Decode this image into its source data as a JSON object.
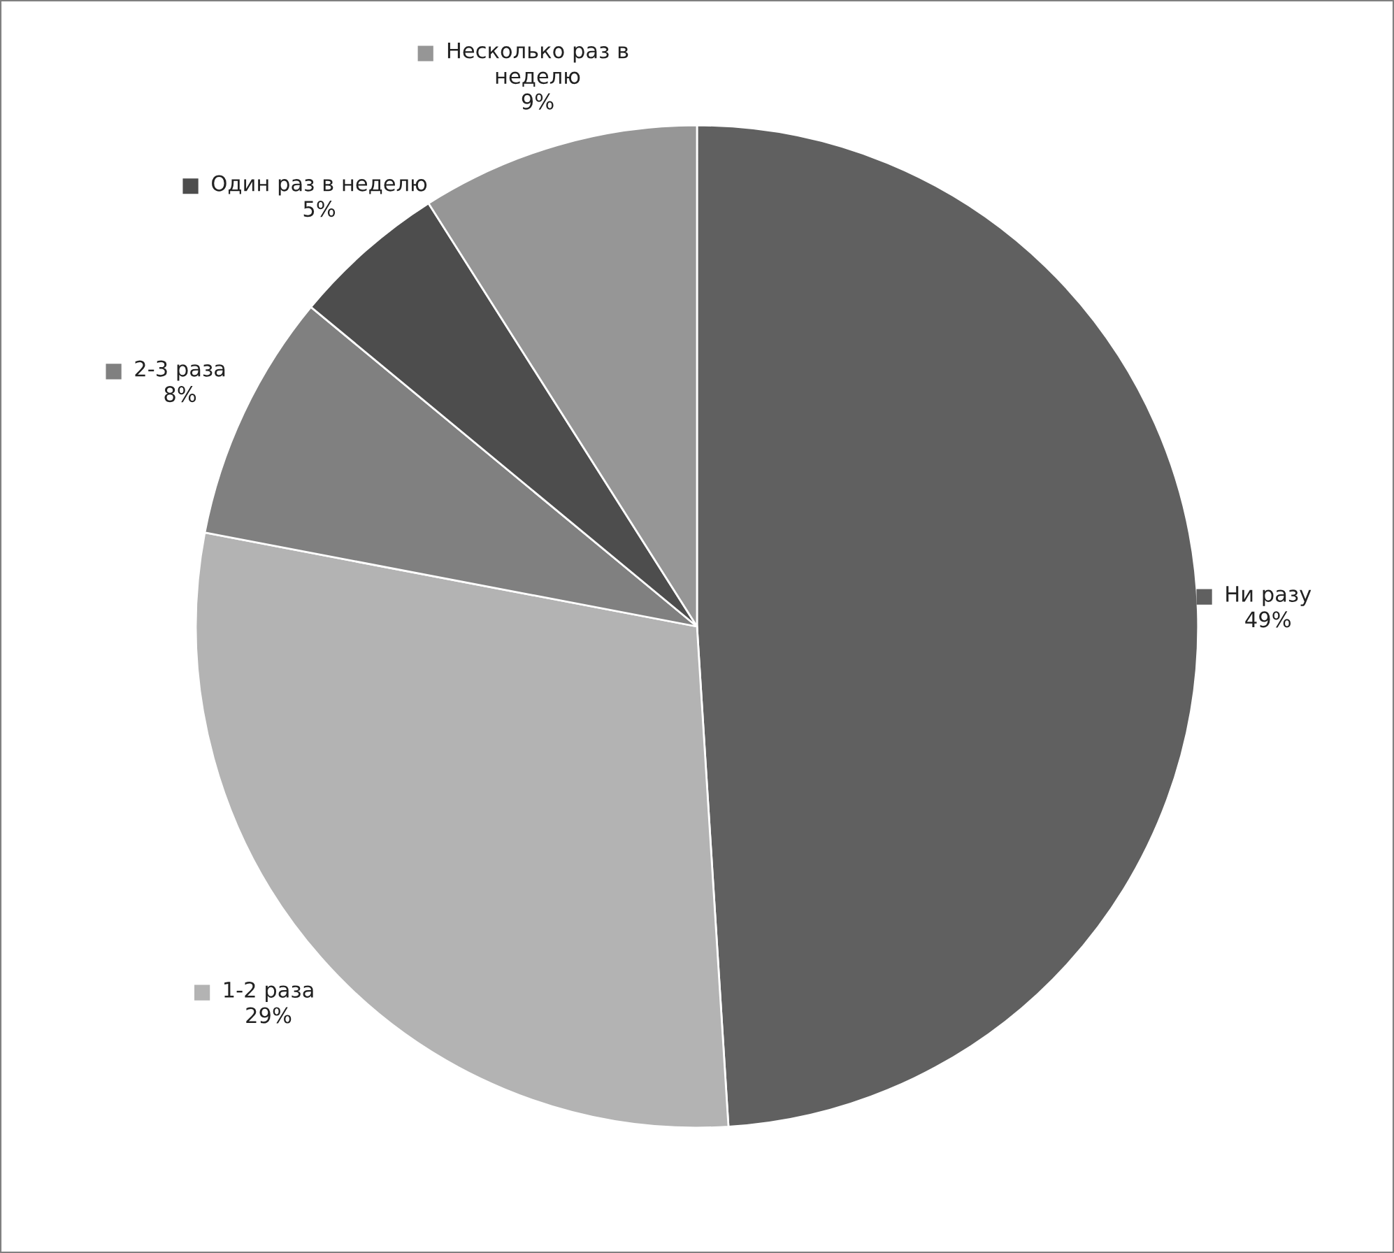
{
  "chart_data": {
    "type": "pie",
    "categories": [
      "Ни разу",
      "1-2 раза",
      "2-3 раза",
      "Один раз в неделю",
      "Несколько раз в неделю"
    ],
    "values": [
      49,
      29,
      8,
      5,
      9
    ],
    "colors": [
      "#606060",
      "#b3b3b3",
      "#808080",
      "#4d4d4d",
      "#969696"
    ],
    "value_labels": [
      "49%",
      "29%",
      "8%",
      "5%",
      "9%"
    ],
    "legend": "right"
  }
}
